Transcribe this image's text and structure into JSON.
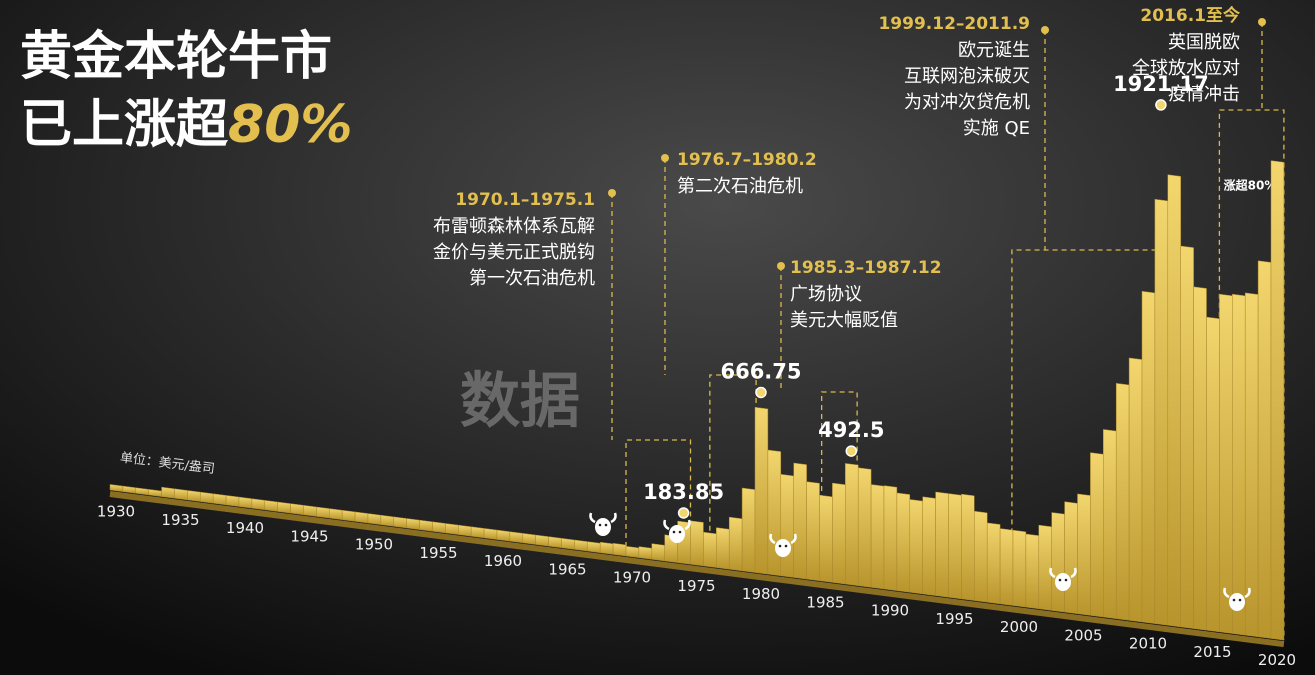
{
  "title_lines": [
    "黄金本轮牛市",
    "已上涨超"
  ],
  "title_highlight": "80%",
  "watermark": "数据",
  "badge": "涨超80%",
  "chart_data": {
    "type": "area",
    "unit": "单位：美元/盎司",
    "color": "#d9b94a",
    "x": [
      1930,
      1931,
      1932,
      1933,
      1934,
      1935,
      1936,
      1937,
      1938,
      1939,
      1940,
      1941,
      1942,
      1943,
      1944,
      1945,
      1946,
      1947,
      1948,
      1949,
      1950,
      1951,
      1952,
      1953,
      1954,
      1955,
      1956,
      1957,
      1958,
      1959,
      1960,
      1961,
      1962,
      1963,
      1964,
      1965,
      1966,
      1967,
      1968,
      1969,
      1970,
      1971,
      1972,
      1973,
      1974,
      1975,
      1976,
      1977,
      1978,
      1979,
      1980,
      1981,
      1982,
      1983,
      1984,
      1985,
      1986,
      1987,
      1988,
      1989,
      1990,
      1991,
      1992,
      1993,
      1994,
      1995,
      1996,
      1997,
      1998,
      1999,
      2000,
      2001,
      2002,
      2003,
      2004,
      2005,
      2006,
      2007,
      2008,
      2009,
      2010,
      2011,
      2012,
      2013,
      2014,
      2015,
      2016,
      2017,
      2018,
      2019,
      2020
    ],
    "values": [
      20.67,
      20.67,
      20.67,
      20.67,
      35,
      35,
      35,
      35,
      35,
      35,
      35,
      35,
      35,
      35,
      35,
      35,
      35,
      35,
      35,
      35,
      35,
      35,
      35,
      35,
      35,
      35,
      35,
      35,
      35,
      35,
      35,
      35,
      35,
      35,
      35,
      35,
      35,
      35,
      39,
      41,
      36,
      41,
      58,
      97,
      154,
      161,
      125,
      148,
      193,
      307,
      612,
      460,
      376,
      424,
      361,
      317,
      368,
      447,
      437,
      381,
      383,
      362,
      344,
      360,
      384,
      384,
      388,
      331,
      294,
      279,
      279,
      271,
      310,
      363,
      409,
      444,
      603,
      695,
      872,
      972,
      1225,
      1572,
      1669,
      1411,
      1266,
      1160,
      1251,
      1257,
      1268,
      1393,
      1770
    ],
    "xticks": [
      1930,
      1935,
      1940,
      1945,
      1950,
      1955,
      1960,
      1965,
      1970,
      1975,
      1980,
      1985,
      1990,
      1995,
      2000,
      2005,
      2010,
      2015,
      2020
    ],
    "peaks": [
      {
        "x": 1974,
        "value": 183.85
      },
      {
        "x": 1980,
        "value": 666.75
      },
      {
        "x": 1987,
        "value": 492.5
      },
      {
        "x": 2011,
        "value": 1921.17
      }
    ],
    "periods": [
      {
        "label": "1970.1–1975.1",
        "lines": [
          "布雷顿森林体系瓦解",
          "金价与美元正式脱钩",
          "第一次石油危机"
        ]
      },
      {
        "label": "1976.7–1980.2",
        "lines": [
          "第二次石油危机"
        ]
      },
      {
        "label": "1985.3–1987.12",
        "lines": [
          "广场协议",
          "美元大幅贬值"
        ]
      },
      {
        "label": "1999.12–2011.9",
        "lines": [
          "欧元诞生",
          "互联网泡沫破灭",
          "为对冲次贷危机",
          "实施 QE"
        ]
      },
      {
        "label": "2016.1至今",
        "lines": [
          "英国脱欧",
          "全球放水应对",
          "疫情冲击"
        ]
      }
    ]
  }
}
